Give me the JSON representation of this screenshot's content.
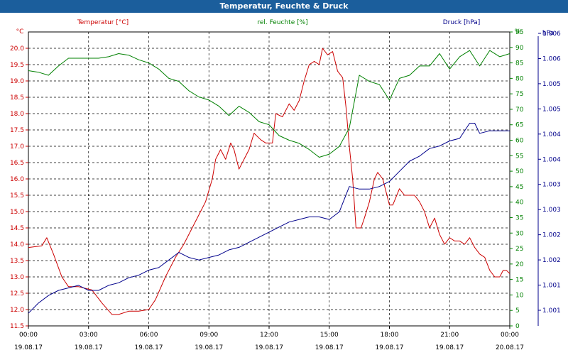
{
  "window": {
    "title": "Temperatur, Feuchte & Druck"
  },
  "colors": {
    "temperature": "#cc0000",
    "humidity": "#008000",
    "pressure": "#00008b",
    "title_bar": "#1b5e9c",
    "grid": "#000000"
  },
  "chart_data": {
    "type": "line",
    "title": "Temperatur, Feuchte & Druck",
    "grid": true,
    "x": {
      "range": [
        "19.08.17 00:00",
        "20.08.17 00:00"
      ],
      "tick_times": [
        "00:00",
        "03:00",
        "06:00",
        "09:00",
        "12:00",
        "15:00",
        "18:00",
        "21:00",
        "00:00"
      ],
      "tick_dates": [
        "19.08.17",
        "19.08.17",
        "19.08.17",
        "19.08.17",
        "19.08.17",
        "19.08.17",
        "19.08.17",
        "19.08.17",
        "20.08.17"
      ]
    },
    "axes": {
      "temperature": {
        "label": "Temperatur [°C]",
        "unit": "°C",
        "range": [
          11.5,
          20.5
        ],
        "ticks": [
          "20.0",
          "19.5",
          "19.0",
          "18.5",
          "18.0",
          "17.5",
          "17.0",
          "16.5",
          "16.0",
          "15.5",
          "15.0",
          "14.5",
          "14.0",
          "13.5",
          "13.0",
          "12.5",
          "12.0",
          "11.5"
        ]
      },
      "humidity": {
        "label": "rel. Feuchte [%]",
        "unit": "%",
        "range": [
          0,
          95
        ],
        "ticks": [
          "0",
          "5",
          "10",
          "15",
          "20",
          "25",
          "30",
          "35",
          "40",
          "45",
          "50",
          "55",
          "60",
          "65",
          "70",
          "75",
          "80",
          "85",
          "90",
          "95"
        ]
      },
      "pressure": {
        "label": "Druck [hPa]",
        "unit": "hPa",
        "range": [
          1000.5,
          1006.3
        ],
        "ticks": [
          "1.006",
          "1.006",
          "1.005",
          "1.005",
          "1.004",
          "1.004",
          "1.003",
          "1.003",
          "1.002",
          "1.002",
          "1.001",
          "1.001"
        ]
      }
    },
    "series": [
      {
        "name": "Temperatur [°C]",
        "axis": "temperature",
        "points": [
          [
            "00:00",
            13.9
          ],
          [
            "00:40",
            13.95
          ],
          [
            "00:55",
            14.2
          ],
          [
            "01:15",
            13.7
          ],
          [
            "01:40",
            13.0
          ],
          [
            "02:00",
            12.7
          ],
          [
            "02:30",
            12.7
          ],
          [
            "03:10",
            12.6
          ],
          [
            "03:40",
            12.2
          ],
          [
            "04:10",
            11.85
          ],
          [
            "04:30",
            11.85
          ],
          [
            "05:00",
            11.95
          ],
          [
            "05:30",
            11.95
          ],
          [
            "06:00",
            12.0
          ],
          [
            "06:20",
            12.3
          ],
          [
            "06:50",
            13.0
          ],
          [
            "07:20",
            13.6
          ],
          [
            "07:45",
            14.0
          ],
          [
            "08:10",
            14.5
          ],
          [
            "08:30",
            14.9
          ],
          [
            "08:50",
            15.3
          ],
          [
            "09:10",
            16.0
          ],
          [
            "09:20",
            16.6
          ],
          [
            "09:35",
            16.9
          ],
          [
            "09:50",
            16.6
          ],
          [
            "10:05",
            17.1
          ],
          [
            "10:15",
            16.9
          ],
          [
            "10:30",
            16.3
          ],
          [
            "10:45",
            16.6
          ],
          [
            "11:00",
            16.9
          ],
          [
            "11:15",
            17.4
          ],
          [
            "11:35",
            17.2
          ],
          [
            "11:50",
            17.1
          ],
          [
            "12:10",
            17.1
          ],
          [
            "12:20",
            18.0
          ],
          [
            "12:40",
            17.9
          ],
          [
            "13:00",
            18.3
          ],
          [
            "13:15",
            18.1
          ],
          [
            "13:30",
            18.4
          ],
          [
            "13:45",
            19.0
          ],
          [
            "14:00",
            19.5
          ],
          [
            "14:15",
            19.6
          ],
          [
            "14:30",
            19.5
          ],
          [
            "14:40",
            20.0
          ],
          [
            "14:55",
            19.8
          ],
          [
            "15:10",
            19.9
          ],
          [
            "15:25",
            19.3
          ],
          [
            "15:40",
            19.1
          ],
          [
            "15:50",
            18.2
          ],
          [
            "16:00",
            17.0
          ],
          [
            "16:10",
            16.0
          ],
          [
            "16:20",
            14.5
          ],
          [
            "16:35",
            14.5
          ],
          [
            "16:45",
            14.8
          ],
          [
            "17:00",
            15.3
          ],
          [
            "17:15",
            16.0
          ],
          [
            "17:25",
            16.2
          ],
          [
            "17:40",
            16.0
          ],
          [
            "17:50",
            15.6
          ],
          [
            "18:00",
            15.2
          ],
          [
            "18:10",
            15.2
          ],
          [
            "18:30",
            15.7
          ],
          [
            "18:45",
            15.5
          ],
          [
            "19:00",
            15.5
          ],
          [
            "19:15",
            15.5
          ],
          [
            "19:30",
            15.3
          ],
          [
            "19:45",
            15.0
          ],
          [
            "20:00",
            14.5
          ],
          [
            "20:15",
            14.8
          ],
          [
            "20:30",
            14.3
          ],
          [
            "20:45",
            14.0
          ],
          [
            "21:00",
            14.2
          ],
          [
            "21:15",
            14.1
          ],
          [
            "21:30",
            14.1
          ],
          [
            "21:45",
            14.0
          ],
          [
            "22:00",
            14.2
          ],
          [
            "22:15",
            13.9
          ],
          [
            "22:30",
            13.7
          ],
          [
            "22:45",
            13.6
          ],
          [
            "23:00",
            13.2
          ],
          [
            "23:15",
            13.0
          ],
          [
            "23:30",
            13.0
          ],
          [
            "23:40",
            13.2
          ],
          [
            "23:50",
            13.2
          ],
          [
            "24:00",
            13.1
          ]
        ]
      },
      {
        "name": "rel. Feuchte [%]",
        "axis": "humidity",
        "points": [
          [
            "00:00",
            82.5
          ],
          [
            "00:30",
            82.0
          ],
          [
            "01:00",
            81.0
          ],
          [
            "01:30",
            84.0
          ],
          [
            "02:00",
            86.5
          ],
          [
            "02:30",
            86.5
          ],
          [
            "03:00",
            86.5
          ],
          [
            "03:30",
            86.5
          ],
          [
            "04:00",
            87.0
          ],
          [
            "04:30",
            88.0
          ],
          [
            "05:00",
            87.5
          ],
          [
            "05:30",
            86.0
          ],
          [
            "06:00",
            85.0
          ],
          [
            "06:30",
            83.0
          ],
          [
            "07:00",
            80.0
          ],
          [
            "07:30",
            79.0
          ],
          [
            "08:00",
            76.0
          ],
          [
            "08:30",
            74.0
          ],
          [
            "09:00",
            73.0
          ],
          [
            "09:30",
            71.0
          ],
          [
            "10:00",
            68.0
          ],
          [
            "10:30",
            71.0
          ],
          [
            "11:00",
            69.0
          ],
          [
            "11:30",
            66.0
          ],
          [
            "12:00",
            65.0
          ],
          [
            "12:30",
            61.5
          ],
          [
            "13:00",
            60.0
          ],
          [
            "13:30",
            59.0
          ],
          [
            "14:00",
            57.0
          ],
          [
            "14:30",
            54.5
          ],
          [
            "15:00",
            55.5
          ],
          [
            "15:30",
            58.0
          ],
          [
            "16:00",
            64.0
          ],
          [
            "16:30",
            81.0
          ],
          [
            "17:00",
            79.0
          ],
          [
            "17:30",
            78.0
          ],
          [
            "18:00",
            73.0
          ],
          [
            "18:30",
            80.0
          ],
          [
            "19:00",
            81.0
          ],
          [
            "19:30",
            84.0
          ],
          [
            "20:00",
            84.0
          ],
          [
            "20:30",
            88.0
          ],
          [
            "21:00",
            83.0
          ],
          [
            "21:30",
            87.0
          ],
          [
            "22:00",
            89.0
          ],
          [
            "22:30",
            84.0
          ],
          [
            "23:00",
            89.0
          ],
          [
            "23:30",
            87.0
          ],
          [
            "24:00",
            88.0
          ]
        ]
      },
      {
        "name": "Druck [hPa]",
        "axis": "pressure",
        "points": [
          [
            "00:00",
            1000.75
          ],
          [
            "00:30",
            1000.95
          ],
          [
            "01:00",
            1001.1
          ],
          [
            "01:30",
            1001.2
          ],
          [
            "02:00",
            1001.25
          ],
          [
            "02:30",
            1001.3
          ],
          [
            "03:00",
            1001.2
          ],
          [
            "03:30",
            1001.2
          ],
          [
            "04:00",
            1001.3
          ],
          [
            "04:30",
            1001.35
          ],
          [
            "05:00",
            1001.45
          ],
          [
            "05:30",
            1001.5
          ],
          [
            "06:00",
            1001.6
          ],
          [
            "06:30",
            1001.65
          ],
          [
            "07:00",
            1001.8
          ],
          [
            "07:30",
            1001.95
          ],
          [
            "08:00",
            1001.85
          ],
          [
            "08:30",
            1001.8
          ],
          [
            "09:00",
            1001.85
          ],
          [
            "09:30",
            1001.9
          ],
          [
            "10:00",
            1002.0
          ],
          [
            "10:30",
            1002.05
          ],
          [
            "11:00",
            1002.15
          ],
          [
            "11:30",
            1002.25
          ],
          [
            "12:00",
            1002.35
          ],
          [
            "12:30",
            1002.45
          ],
          [
            "13:00",
            1002.55
          ],
          [
            "13:30",
            1002.6
          ],
          [
            "14:00",
            1002.65
          ],
          [
            "14:30",
            1002.65
          ],
          [
            "15:00",
            1002.6
          ],
          [
            "15:30",
            1002.75
          ],
          [
            "16:00",
            1003.25
          ],
          [
            "16:30",
            1003.2
          ],
          [
            "17:00",
            1003.2
          ],
          [
            "17:30",
            1003.25
          ],
          [
            "18:00",
            1003.35
          ],
          [
            "18:30",
            1003.55
          ],
          [
            "19:00",
            1003.75
          ],
          [
            "19:30",
            1003.85
          ],
          [
            "20:00",
            1004.0
          ],
          [
            "20:30",
            1004.05
          ],
          [
            "21:00",
            1004.15
          ],
          [
            "21:30",
            1004.2
          ],
          [
            "22:00",
            1004.5
          ],
          [
            "22:15",
            1004.5
          ],
          [
            "22:30",
            1004.3
          ],
          [
            "23:00",
            1004.35
          ],
          [
            "23:30",
            1004.35
          ],
          [
            "24:00",
            1004.35
          ]
        ]
      }
    ]
  }
}
